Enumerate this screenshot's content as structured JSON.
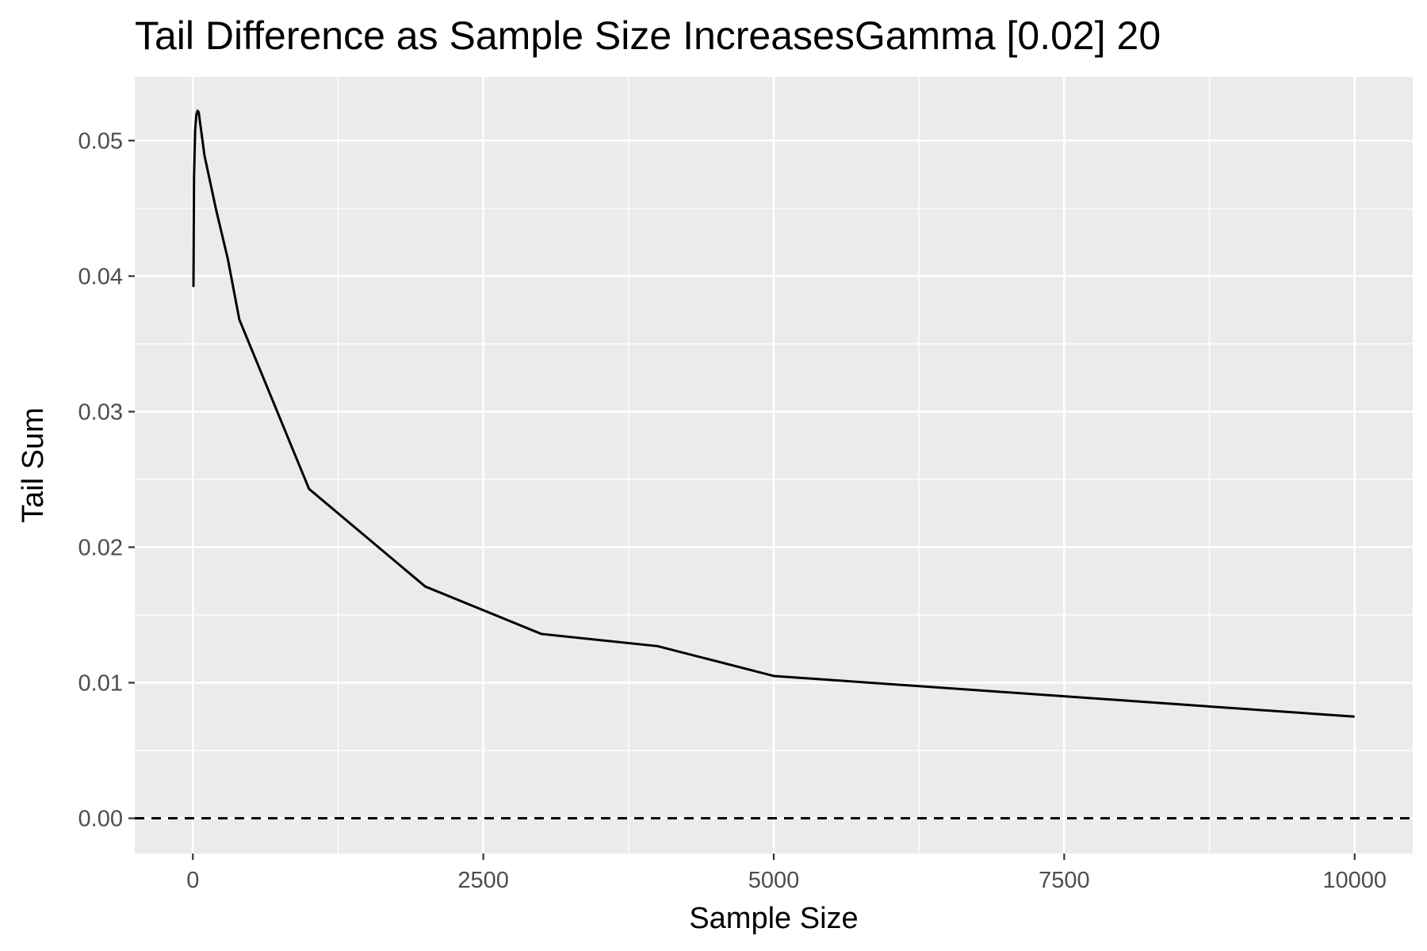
{
  "chart_data": {
    "type": "line",
    "title": "Tail Difference as Sample Size IncreasesGamma [0.02] 20",
    "xlabel": "Sample Size",
    "ylabel": "Tail Sum",
    "xlim": [
      -500,
      10500
    ],
    "ylim": [
      -0.0026,
      0.0547
    ],
    "x_ticks": [
      0,
      2500,
      5000,
      7500,
      10000
    ],
    "x_tick_labels": [
      "0",
      "2500",
      "5000",
      "7500",
      "10000"
    ],
    "y_ticks": [
      0,
      0.01,
      0.02,
      0.03,
      0.04,
      0.05
    ],
    "y_tick_labels": [
      "0.00",
      "0.01",
      "0.02",
      "0.03",
      "0.04",
      "0.05"
    ],
    "x_minor_ticks": [
      1250,
      3750,
      6250,
      8750
    ],
    "y_minor_ticks": [
      0.005,
      0.015,
      0.025,
      0.035,
      0.045
    ],
    "grid": true,
    "legend": "none",
    "series": [
      {
        "x": [
          5,
          10,
          20,
          30,
          40,
          50,
          100,
          200,
          300,
          400,
          1000,
          2000,
          3000,
          4000,
          5000,
          10000
        ],
        "y": [
          0.0392,
          0.0473,
          0.0508,
          0.0519,
          0.0522,
          0.0521,
          0.0489,
          0.0449,
          0.0413,
          0.0368,
          0.0243,
          0.0171,
          0.0136,
          0.0127,
          0.0105,
          0.0075
        ],
        "color": "#000000"
      }
    ],
    "reference_line": {
      "y": 0,
      "style": "dashed",
      "color": "#000000"
    },
    "panel_background": "#ebebeb",
    "grid_color": "#ffffff"
  }
}
